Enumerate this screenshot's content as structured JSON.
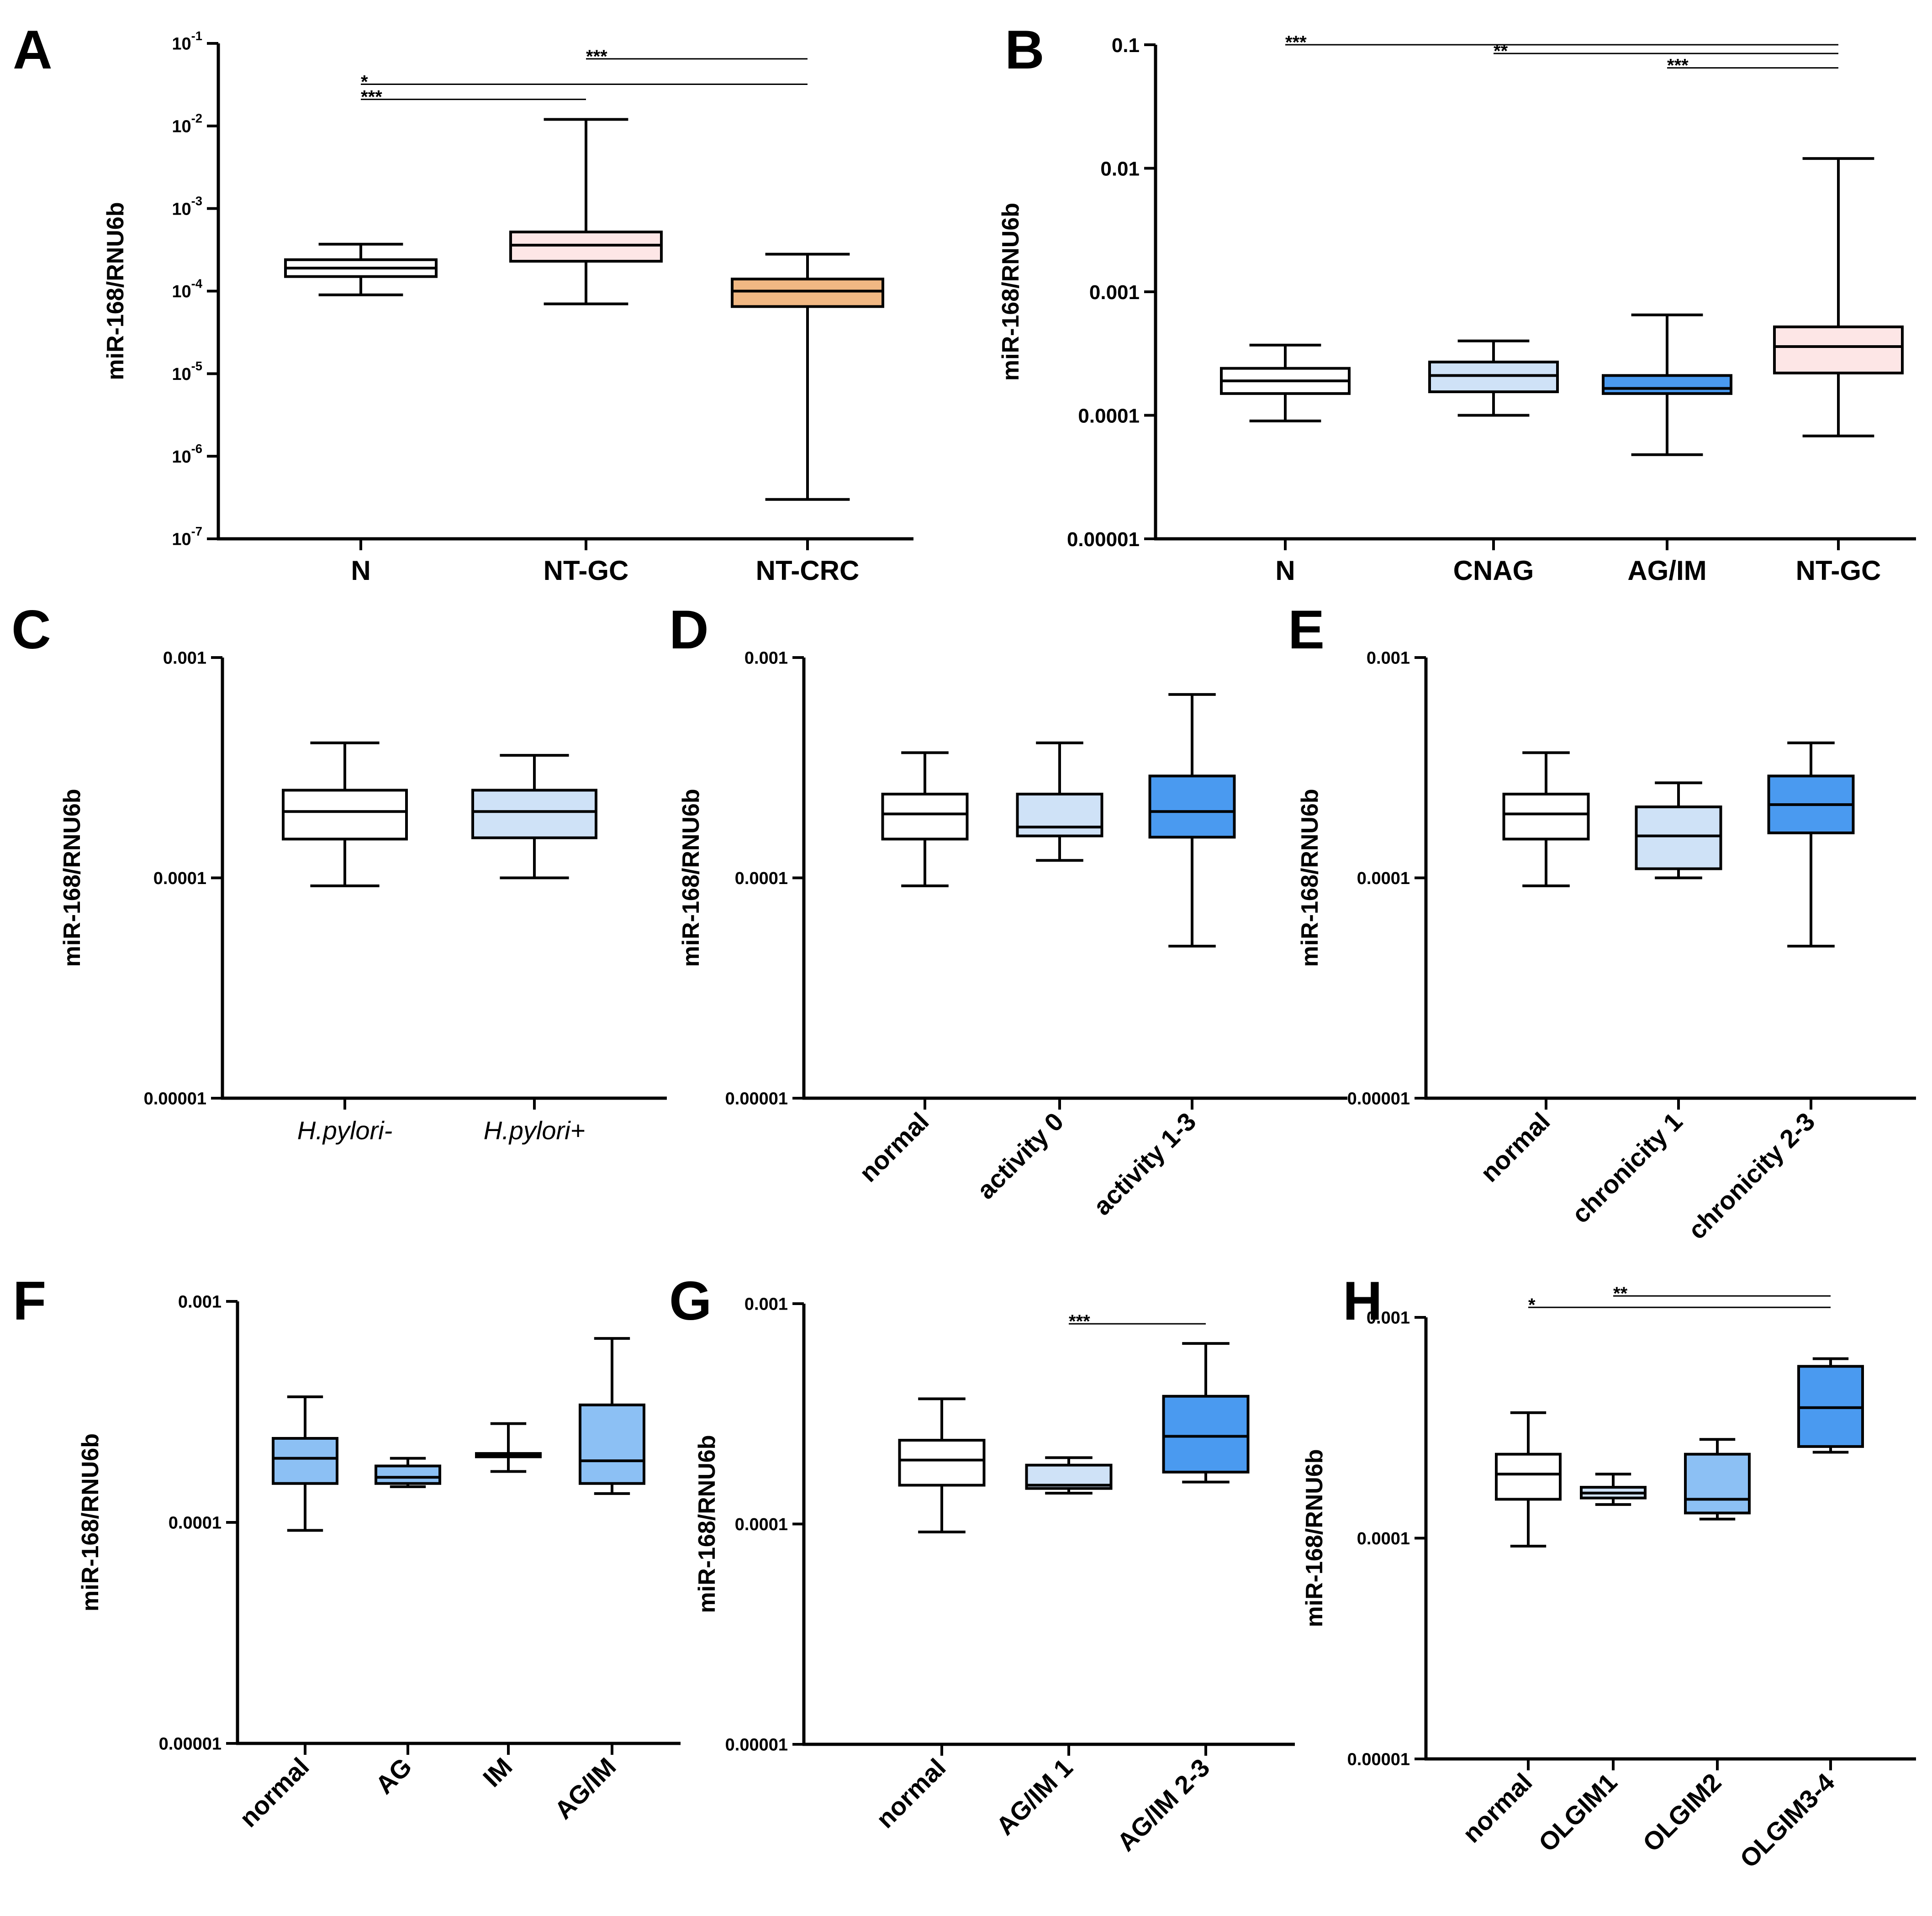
{
  "figure": {
    "panels_order": [
      "A",
      "B",
      "C",
      "D",
      "E",
      "F",
      "G",
      "H"
    ]
  },
  "chart_data": [
    {
      "id": "A",
      "type": "boxplot",
      "panel_label": "A",
      "ylabel": "miR-168/RNU6b",
      "yscale": "log",
      "ylim": [
        1e-07,
        0.1
      ],
      "yticks": [
        {
          "value": 1e-07,
          "base": "10",
          "exp": "-7"
        },
        {
          "value": 1e-06,
          "base": "10",
          "exp": "-6"
        },
        {
          "value": 1e-05,
          "base": "10",
          "exp": "-5"
        },
        {
          "value": 0.0001,
          "base": "10",
          "exp": "-4"
        },
        {
          "value": 0.001,
          "base": "10",
          "exp": "-3"
        },
        {
          "value": 0.01,
          "base": "10",
          "exp": "-2"
        },
        {
          "value": 0.1,
          "base": "10",
          "exp": "-1"
        }
      ],
      "categories": [
        "N",
        "NT-GC",
        "NT-CRC"
      ],
      "xlabel_style": "bold",
      "boxes": [
        {
          "min": 9e-05,
          "q1": 0.00015,
          "median": 0.00019,
          "q3": 0.00024,
          "max": 0.00037,
          "fill": "#ffffff"
        },
        {
          "min": 7e-05,
          "q1": 0.00023,
          "median": 0.00036,
          "q3": 0.00052,
          "max": 0.012,
          "fill": "#fde6e6"
        },
        {
          "min": 3e-07,
          "q1": 6.5e-05,
          "median": 0.0001,
          "q3": 0.00014,
          "max": 0.00028,
          "fill": "#f1b883"
        }
      ],
      "significance": [
        {
          "from": 1,
          "to": 2,
          "label": "***",
          "y": 0.065
        },
        {
          "from": 0,
          "to": 2,
          "label": "*",
          "y": 0.032
        },
        {
          "from": 0,
          "to": 1,
          "label": "***",
          "y": 0.021
        }
      ]
    },
    {
      "id": "B",
      "type": "boxplot",
      "panel_label": "B",
      "ylabel": "miR-168/RNU6b",
      "yscale": "log",
      "ylim": [
        1e-05,
        0.1
      ],
      "yticks": [
        {
          "value": 1e-05,
          "label": "0.00001"
        },
        {
          "value": 0.0001,
          "label": "0.0001"
        },
        {
          "value": 0.001,
          "label": "0.001"
        },
        {
          "value": 0.01,
          "label": "0.01"
        },
        {
          "value": 0.1,
          "label": "0.1"
        }
      ],
      "categories": [
        "N",
        "CNAG",
        "AG/IM",
        "NT-GC"
      ],
      "xlabel_style": "bold",
      "boxes": [
        {
          "min": 9e-05,
          "q1": 0.00015,
          "median": 0.00019,
          "q3": 0.00024,
          "max": 0.00037,
          "fill": "#ffffff"
        },
        {
          "min": 0.0001,
          "q1": 0.000155,
          "median": 0.00021,
          "q3": 0.00027,
          "max": 0.0004,
          "fill": "#cfe2f7"
        },
        {
          "min": 4.8e-05,
          "q1": 0.00015,
          "median": 0.000165,
          "q3": 0.00021,
          "max": 0.00065,
          "fill": "#4a9af0"
        },
        {
          "min": 6.8e-05,
          "q1": 0.00022,
          "median": 0.00036,
          "q3": 0.00052,
          "max": 0.012,
          "fill": "#fde6e6"
        }
      ],
      "significance": [
        {
          "from": 0,
          "to": 3,
          "label": "***",
          "y": 0.1
        },
        {
          "from": 1,
          "to": 3,
          "label": "**",
          "y": 0.085
        },
        {
          "from": 2,
          "to": 3,
          "label": "***",
          "y": 0.065
        }
      ]
    },
    {
      "id": "C",
      "type": "boxplot",
      "panel_label": "C",
      "ylabel": "miR-168/RNU6b",
      "yscale": "log",
      "ylim": [
        1e-05,
        0.001
      ],
      "yticks": [
        {
          "value": 1e-05,
          "label": "0.00001"
        },
        {
          "value": 0.0001,
          "label": "0.0001"
        },
        {
          "value": 0.001,
          "label": "0.001"
        }
      ],
      "categories": [
        "H.pylori-",
        "H.pylori+"
      ],
      "xlabel_style": "italic",
      "boxes": [
        {
          "min": 9.2e-05,
          "q1": 0.00015,
          "median": 0.0002,
          "q3": 0.00025,
          "max": 0.00041,
          "fill": "#ffffff"
        },
        {
          "min": 0.0001,
          "q1": 0.000152,
          "median": 0.0002,
          "q3": 0.00025,
          "max": 0.00036,
          "fill": "#cfe2f7"
        }
      ],
      "significance": []
    },
    {
      "id": "D",
      "type": "boxplot",
      "panel_label": "D",
      "ylabel": "miR-168/RNU6b",
      "yscale": "log",
      "ylim": [
        1e-05,
        0.001
      ],
      "yticks": [
        {
          "value": 1e-05,
          "label": "0.00001"
        },
        {
          "value": 0.0001,
          "label": "0.0001"
        },
        {
          "value": 0.001,
          "label": "0.001"
        }
      ],
      "categories": [
        "normal",
        "activity 0",
        "activity 1-3"
      ],
      "xlabel_style": "rotated",
      "boxes": [
        {
          "min": 9.2e-05,
          "q1": 0.00015,
          "median": 0.000195,
          "q3": 0.00024,
          "max": 0.00037,
          "fill": "#ffffff"
        },
        {
          "min": 0.00012,
          "q1": 0.000155,
          "median": 0.00017,
          "q3": 0.00024,
          "max": 0.00041,
          "fill": "#cfe2f7"
        },
        {
          "min": 4.9e-05,
          "q1": 0.000153,
          "median": 0.0002,
          "q3": 0.00029,
          "max": 0.00068,
          "fill": "#4a9af0"
        }
      ],
      "significance": []
    },
    {
      "id": "E",
      "type": "boxplot",
      "panel_label": "E",
      "ylabel": "miR-168/RNU6b",
      "yscale": "log",
      "ylim": [
        1e-05,
        0.001
      ],
      "yticks": [
        {
          "value": 1e-05,
          "label": "0.00001"
        },
        {
          "value": 0.0001,
          "label": "0.0001"
        },
        {
          "value": 0.001,
          "label": "0.001"
        }
      ],
      "categories": [
        "normal",
        "chronicity 1",
        "chronicity 2-3"
      ],
      "xlabel_style": "rotated",
      "boxes": [
        {
          "min": 9.2e-05,
          "q1": 0.00015,
          "median": 0.000195,
          "q3": 0.00024,
          "max": 0.00037,
          "fill": "#ffffff"
        },
        {
          "min": 0.0001,
          "q1": 0.00011,
          "median": 0.000155,
          "q3": 0.00021,
          "max": 0.00027,
          "fill": "#cfe2f7"
        },
        {
          "min": 4.9e-05,
          "q1": 0.00016,
          "median": 0.000215,
          "q3": 0.00029,
          "max": 0.00041,
          "fill": "#4a9af0"
        }
      ],
      "significance": []
    },
    {
      "id": "F",
      "type": "boxplot",
      "panel_label": "F",
      "ylabel": "miR-168/RNU6b",
      "yscale": "log",
      "ylim": [
        1e-05,
        0.001
      ],
      "yticks": [
        {
          "value": 1e-05,
          "label": "0.00001"
        },
        {
          "value": 0.0001,
          "label": "0.0001"
        },
        {
          "value": 0.001,
          "label": "0.001"
        }
      ],
      "categories": [
        "normal",
        "AG",
        "IM",
        "AG/IM"
      ],
      "xlabel_style": "rotated",
      "boxes": [
        {
          "min": 9.2e-05,
          "q1": 0.00015,
          "median": 0.000195,
          "q3": 0.00024,
          "max": 0.00037,
          "fill": "#8cc0f4"
        },
        {
          "min": 0.000145,
          "q1": 0.00015,
          "median": 0.00016,
          "q3": 0.00018,
          "max": 0.000195,
          "fill": "#8cc0f4"
        },
        {
          "min": 0.00017,
          "q1": 0.000198,
          "median": 0.0002,
          "q3": 0.000205,
          "max": 0.00028,
          "fill": "#8cc0f4"
        },
        {
          "min": 0.000135,
          "q1": 0.00015,
          "median": 0.00019,
          "q3": 0.00034,
          "max": 0.00068,
          "fill": "#8cc0f4"
        }
      ],
      "significance": []
    },
    {
      "id": "G",
      "type": "boxplot",
      "panel_label": "G",
      "ylabel": "miR-168/RNU6b",
      "yscale": "log",
      "ylim": [
        1e-05,
        0.001
      ],
      "yticks": [
        {
          "value": 1e-05,
          "label": "0.00001"
        },
        {
          "value": 0.0001,
          "label": "0.0001"
        },
        {
          "value": 0.001,
          "label": "0.001"
        }
      ],
      "categories": [
        "normal",
        "AG/IM 1",
        "AG/IM 2-3"
      ],
      "xlabel_style": "rotated",
      "boxes": [
        {
          "min": 9.2e-05,
          "q1": 0.00015,
          "median": 0.000195,
          "q3": 0.00024,
          "max": 0.00037,
          "fill": "#ffffff"
        },
        {
          "min": 0.000138,
          "q1": 0.000145,
          "median": 0.00015,
          "q3": 0.000185,
          "max": 0.0002,
          "fill": "#cfe2f7"
        },
        {
          "min": 0.000155,
          "q1": 0.000172,
          "median": 0.00025,
          "q3": 0.00038,
          "max": 0.00066,
          "fill": "#4a9af0"
        }
      ],
      "significance": [
        {
          "from": 1,
          "to": 2,
          "label": "***",
          "y": 0.00081
        }
      ]
    },
    {
      "id": "H",
      "type": "boxplot",
      "panel_label": "H",
      "ylabel": "miR-168/RNU6b",
      "yscale": "log",
      "ylim": [
        1e-05,
        0.001
      ],
      "yticks": [
        {
          "value": 1e-05,
          "label": "0.00001"
        },
        {
          "value": 0.0001,
          "label": "0.0001"
        },
        {
          "value": 0.001,
          "label": "0.001"
        }
      ],
      "categories": [
        "normal",
        "OLGIM1",
        "OLGIM2",
        "OLGIM3-4"
      ],
      "xlabel_style": "rotated",
      "boxes": [
        {
          "min": 9.2e-05,
          "q1": 0.00015,
          "median": 0.000195,
          "q3": 0.00024,
          "max": 0.00037,
          "fill": "#ffffff"
        },
        {
          "min": 0.000142,
          "q1": 0.000152,
          "median": 0.00016,
          "q3": 0.00017,
          "max": 0.000195,
          "fill": "#cfe2f7"
        },
        {
          "min": 0.000122,
          "q1": 0.00013,
          "median": 0.00015,
          "q3": 0.00024,
          "max": 0.00028,
          "fill": "#8cc0f4"
        },
        {
          "min": 0.000245,
          "q1": 0.00026,
          "median": 0.00039,
          "q3": 0.0006,
          "max": 0.00065,
          "fill": "#4a9af0"
        }
      ],
      "significance": [
        {
          "from": 1,
          "to": 3,
          "label": "**",
          "y": 0.00125
        },
        {
          "from": 0,
          "to": 3,
          "label": "*",
          "y": 0.00111
        }
      ]
    }
  ]
}
